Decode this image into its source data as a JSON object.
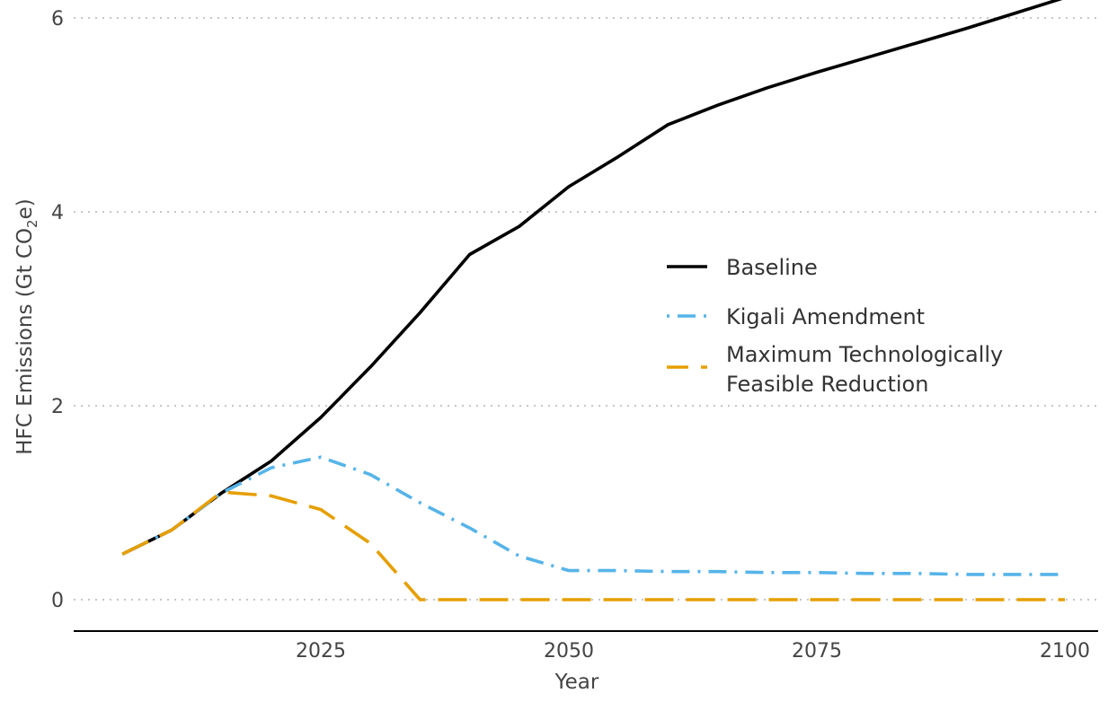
{
  "chart_data": {
    "type": "line",
    "title": "",
    "xlabel": "Year",
    "ylabel": "HFC Emissions (Gt CO2e)",
    "ylabel_parts": {
      "pre": "HFC Emissions (Gt CO",
      "sub": "2",
      "post": "e)"
    },
    "xlim": [
      2000,
      2103
    ],
    "ylim": [
      -0.3,
      6.2
    ],
    "xticks": [
      2025,
      2050,
      2075,
      2100
    ],
    "yticks": [
      0,
      2,
      4,
      6
    ],
    "grid": "horizontal dotted",
    "legend_position": "right-center",
    "x": [
      2005,
      2010,
      2015,
      2020,
      2025,
      2030,
      2035,
      2040,
      2045,
      2050,
      2055,
      2060,
      2065,
      2070,
      2075,
      2080,
      2085,
      2090,
      2095,
      2100
    ],
    "series": [
      {
        "name": "Baseline",
        "color": "#000000",
        "dash": "solid",
        "values": [
          0.47,
          0.72,
          1.1,
          1.43,
          1.88,
          2.4,
          2.96,
          3.56,
          3.85,
          4.26,
          4.57,
          4.9,
          5.1,
          5.28,
          5.44,
          5.59,
          5.74,
          5.89,
          6.05,
          6.21
        ]
      },
      {
        "name": "Kigali Amendment",
        "color": "#56B4E9",
        "dash": "dotdash",
        "values": [
          0.47,
          0.72,
          1.1,
          1.36,
          1.47,
          1.29,
          1.0,
          0.74,
          0.45,
          0.3,
          0.3,
          0.29,
          0.29,
          0.28,
          0.28,
          0.27,
          0.27,
          0.26,
          0.26,
          0.26
        ]
      },
      {
        "name": "Maximum Technologically\nFeasible Reduction",
        "lines": [
          "Maximum Technologically",
          "Feasible Reduction"
        ],
        "color": "#E69F00",
        "dash": "longdash",
        "values": [
          0.47,
          0.72,
          1.11,
          1.07,
          0.93,
          0.58,
          0.0,
          0.0,
          0.0,
          0.0,
          0.0,
          0.0,
          0.0,
          0.0,
          0.0,
          0.0,
          0.0,
          0.0,
          0.0,
          0.0
        ]
      }
    ]
  }
}
